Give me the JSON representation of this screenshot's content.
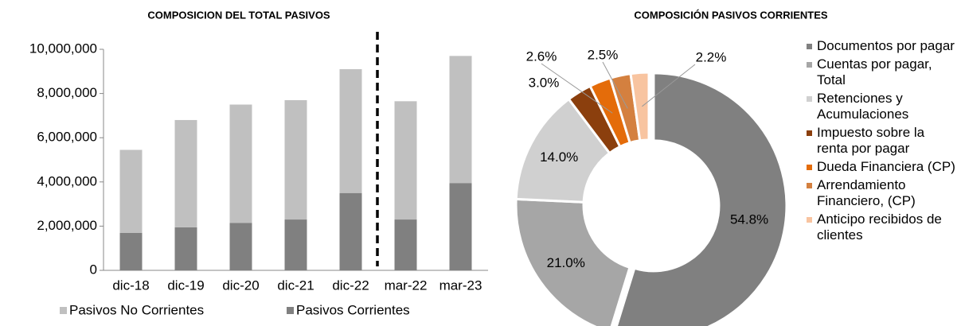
{
  "chart_data": [
    {
      "type": "bar",
      "stacked": true,
      "title": "COMPOSICION DEL TOTAL PASIVOS",
      "categories": [
        "dic-18",
        "dic-19",
        "dic-20",
        "dic-21",
        "dic-22",
        "mar-22",
        "mar-23"
      ],
      "series": [
        {
          "name": "Pasivos No Corrientes",
          "color": "#c0c0c0",
          "values": [
            3750000,
            4850000,
            5350000,
            5400000,
            5600000,
            5350000,
            5750000
          ]
        },
        {
          "name": "Pasivos Corrientes",
          "color": "#808080",
          "values": [
            1700000,
            1950000,
            2150000,
            2300000,
            3500000,
            2300000,
            3950000
          ]
        }
      ],
      "ylim": [
        0,
        10000000
      ],
      "yticks": [
        0,
        {
          "value": 2000000,
          "label": "2,000,000"
        },
        {
          "value": 4000000,
          "label": "4,000,000"
        },
        {
          "value": 6000000,
          "label": "6,000,000"
        },
        {
          "value": 8000000,
          "label": "8,000,000"
        },
        {
          "value": 10000000,
          "label": "10,000,000"
        }
      ],
      "legend": "bottom"
    },
    {
      "type": "donut",
      "title": "COMPOSICIÓN PASIVOS CORRIENTES",
      "categories": [
        "Documentos por pagar",
        "Cuentas por pagar, Total",
        "Retenciones y Acumulaciones",
        "Impuesto sobre la renta por pagar",
        "Dueda Financiera (CP)",
        "Arrendamiento Financiero, (CP)",
        "Anticipo recibidos de clientes"
      ],
      "values": [
        54.8,
        21.0,
        14.0,
        3.0,
        2.6,
        2.5,
        2.2
      ],
      "value_labels": [
        "54.8%",
        "21.0%",
        "14.0%",
        "3.0%",
        "2.6%",
        "2.5%",
        "2.2%"
      ],
      "colors": [
        "#808080",
        "#a6a6a6",
        "#d0d0d0",
        "#8b3f0d",
        "#e46c0a",
        "#d4803f",
        "#f8c4a0"
      ],
      "legend": "right"
    }
  ]
}
